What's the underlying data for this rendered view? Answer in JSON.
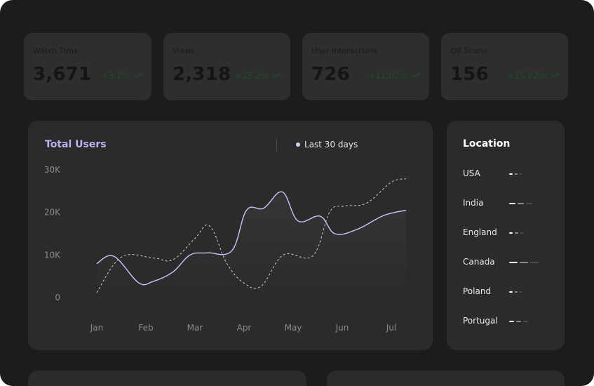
{
  "kpis": [
    {
      "label": "Watch Time",
      "value": "3,671",
      "change": "+3.2%"
    },
    {
      "label": "Views",
      "value": "2,318",
      "change": "+15.2%"
    },
    {
      "label": "User Interactions",
      "value": "726",
      "change": "+11.02%"
    },
    {
      "label": "QR Scans",
      "value": "156",
      "change": "+15.92%"
    }
  ],
  "users_panel": {
    "title": "Total Users",
    "legend": "Last 30 days"
  },
  "chart_data": {
    "type": "line",
    "categories": [
      "Jan",
      "Feb",
      "Mar",
      "Apr",
      "May",
      "Jun",
      "Jul"
    ],
    "ylim": [
      0,
      30000
    ],
    "yticks": [
      0,
      10000,
      20000,
      30000
    ],
    "ytick_labels": [
      "0",
      "10K",
      "20K",
      "30K"
    ],
    "grid": false,
    "series": [
      {
        "style": "solid",
        "color": "#c9c3ff",
        "x": [
          0,
          0.35,
          0.85,
          1.15,
          1.55,
          1.9,
          2.25,
          2.75,
          3.05,
          3.4,
          3.78,
          4.1,
          4.55,
          4.85,
          5.3,
          5.85,
          6.3
        ],
        "y": [
          8000,
          9700,
          3500,
          3800,
          6000,
          10000,
          10500,
          11000,
          20500,
          21000,
          24800,
          18000,
          19100,
          15000,
          16000,
          19300,
          20500
        ]
      },
      {
        "style": "dashed",
        "color": "#cfcfcf",
        "x": [
          0,
          0.5,
          1.15,
          1.55,
          2.0,
          2.3,
          2.65,
          3.0,
          3.35,
          3.8,
          4.4,
          4.75,
          5.05,
          5.5,
          6.0,
          6.3
        ],
        "y": [
          1200,
          9500,
          9300,
          8900,
          13900,
          16800,
          8000,
          3400,
          2700,
          10000,
          9800,
          20200,
          21500,
          22200,
          27100,
          27900
        ]
      }
    ]
  },
  "location": {
    "title": "Location",
    "rows": [
      {
        "name": "USA",
        "segments": [
          0.03,
          0.025,
          0.025
        ]
      },
      {
        "name": "India",
        "segments": [
          0.05,
          0.05,
          0.05
        ]
      },
      {
        "name": "England",
        "segments": [
          0.03,
          0.03,
          0.025
        ]
      },
      {
        "name": "Canada",
        "segments": [
          0.07,
          0.07,
          0.07
        ]
      },
      {
        "name": "Poland",
        "segments": [
          0.03,
          0.025,
          0.025
        ]
      },
      {
        "name": "Portugal",
        "segments": [
          0.04,
          0.04,
          0.04
        ]
      }
    ]
  },
  "icons": {
    "trend": "trend-up-icon"
  },
  "colors": {
    "background": "#1c1c1c",
    "card": "#2b2b2b",
    "accent": "#b9b3f3",
    "positive": "#1f4a2b"
  }
}
